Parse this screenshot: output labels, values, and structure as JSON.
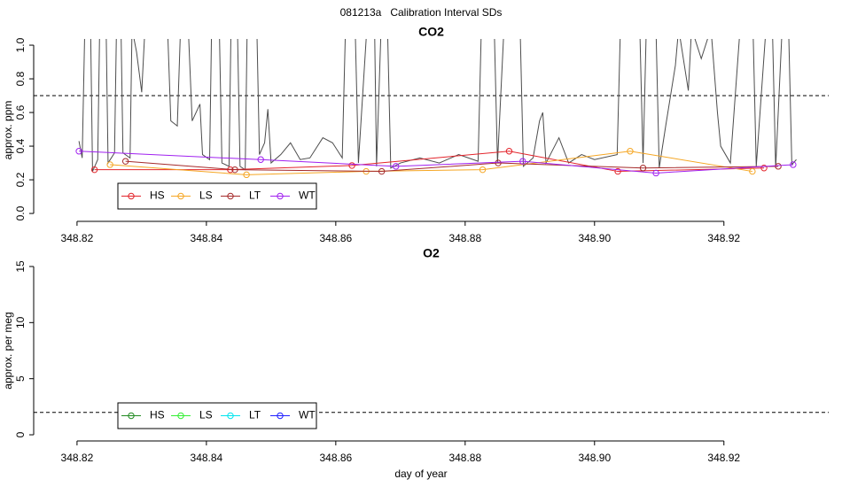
{
  "title": "081213a   Calibration Interval SDs",
  "xlabel": "day of year",
  "chart_data": [
    {
      "type": "line",
      "title": "CO2",
      "ylabel": "approx. ppm",
      "xlim": [
        348.8133,
        348.9362
      ],
      "ylim": [
        -0.047,
        1.037
      ],
      "xticks": [
        348.82,
        348.84,
        348.86,
        348.88,
        {
          "value": 348.9,
          "label": "348.90"
        },
        348.92
      ],
      "yticks": [
        {
          "value": 0,
          "label": "0.0"
        },
        0.2,
        0.4,
        0.6,
        0.8,
        {
          "value": 1,
          "label": "1.0"
        }
      ],
      "hline": 0.7,
      "legend": "bottom-left",
      "trace": {
        "color": "#4d4d4d",
        "x": [
          348.8203,
          348.8208,
          348.8212,
          348.8221,
          348.8224,
          348.8232,
          348.8235,
          348.8245,
          348.8248,
          348.8258,
          348.8261,
          348.8268,
          348.8271,
          348.8282,
          348.8285,
          348.8292,
          348.83,
          348.8305,
          348.834,
          348.8345,
          348.8355,
          348.836,
          348.8372,
          348.8378,
          348.839,
          348.8394,
          348.8405,
          348.8408,
          348.842,
          348.8424,
          348.8435,
          348.8438,
          348.8448,
          348.8452,
          348.846,
          348.8463,
          348.8478,
          348.8482,
          348.849,
          348.8495,
          348.85,
          348.8515,
          348.853,
          348.8545,
          348.856,
          348.858,
          348.8595,
          348.861,
          348.8615,
          348.863,
          348.8635,
          348.8648,
          348.866,
          348.8663,
          348.867,
          348.868,
          348.8685,
          348.87,
          348.873,
          348.876,
          348.879,
          348.882,
          348.8825,
          348.8845,
          348.885,
          348.886,
          348.8885,
          348.889,
          348.8905,
          348.8915,
          348.892,
          348.8925,
          348.8945,
          348.896,
          348.898,
          348.9,
          348.9035,
          348.904,
          348.907,
          348.9075,
          348.908,
          348.9095,
          348.91,
          348.911,
          348.9125,
          348.913,
          348.9145,
          348.915,
          348.9165,
          348.918,
          348.919,
          348.9195,
          348.921,
          348.9225,
          348.9245,
          348.925,
          348.9265,
          348.9275,
          348.928,
          348.929,
          348.93,
          348.9305,
          348.9312
        ],
        "values": [
          0.43,
          0.33,
          1.1,
          1.1,
          0.25,
          0.32,
          1.1,
          1.1,
          0.3,
          0.36,
          1.1,
          1.1,
          0.36,
          0.33,
          1.1,
          0.96,
          0.72,
          1.1,
          1.1,
          0.55,
          0.52,
          1.1,
          1.1,
          0.55,
          0.65,
          0.35,
          0.32,
          1.1,
          1.1,
          0.3,
          0.28,
          1.1,
          1.1,
          0.28,
          0.26,
          1.1,
          1.1,
          0.35,
          0.42,
          0.62,
          0.3,
          0.35,
          0.42,
          0.32,
          0.33,
          0.45,
          0.42,
          0.33,
          1.1,
          1.1,
          0.3,
          1.1,
          1.1,
          0.28,
          1.1,
          1.1,
          0.27,
          0.3,
          0.33,
          0.3,
          0.35,
          0.31,
          1.1,
          1.1,
          0.3,
          1.1,
          1.1,
          0.28,
          0.33,
          0.55,
          0.6,
          0.3,
          0.45,
          0.3,
          0.35,
          0.32,
          0.35,
          1.1,
          1.1,
          0.3,
          1.1,
          1.1,
          0.27,
          0.52,
          0.88,
          1.1,
          0.73,
          1.1,
          0.92,
          1.1,
          0.6,
          0.4,
          0.3,
          1.1,
          1.1,
          0.28,
          1.1,
          1.1,
          0.27,
          1.1,
          1.1,
          0.29,
          0.32
        ]
      },
      "series": [
        {
          "name": "HS",
          "color": "#e3242b",
          "x": [
            348.8227,
            348.8437,
            348.8625,
            348.8868,
            348.9036,
            348.9262
          ],
          "values": [
            0.26,
            0.26,
            0.285,
            0.37,
            0.25,
            0.27
          ]
        },
        {
          "name": "LS",
          "color": "#f5a623",
          "x": [
            348.8251,
            348.8462,
            348.8647,
            348.8827,
            348.9055,
            348.9244
          ],
          "values": [
            0.29,
            0.23,
            0.25,
            0.26,
            0.37,
            0.25
          ]
        },
        {
          "name": "LT",
          "color": "#a52a2a",
          "x": [
            348.8275,
            348.8444,
            348.8671,
            348.8851,
            348.9075,
            348.9284
          ],
          "values": [
            0.31,
            0.26,
            0.25,
            0.3,
            0.27,
            0.28
          ]
        },
        {
          "name": "WT",
          "color": "#a020f0",
          "x": [
            348.8203,
            348.8484,
            348.8693,
            348.8889,
            348.9095,
            348.9307
          ],
          "values": [
            0.37,
            0.32,
            0.28,
            0.31,
            0.24,
            0.29
          ]
        }
      ]
    },
    {
      "type": "line",
      "title": "O2",
      "ylabel": "approx. per meg",
      "xlim": [
        348.8133,
        348.9362
      ],
      "ylim": [
        -0.55,
        15.55
      ],
      "xticks": [
        348.82,
        348.84,
        348.86,
        348.88,
        {
          "value": 348.9,
          "label": "348.90"
        },
        348.92
      ],
      "yticks": [
        0,
        5,
        10,
        15
      ],
      "hline": 2,
      "legend": "bottom-left",
      "series": [
        {
          "name": "HS",
          "color": "#228b22",
          "x": [],
          "values": []
        },
        {
          "name": "LS",
          "color": "#33ee33",
          "x": [],
          "values": []
        },
        {
          "name": "LT",
          "color": "#00e5ee",
          "x": [],
          "values": []
        },
        {
          "name": "WT",
          "color": "#1f1fff",
          "x": [],
          "values": []
        }
      ]
    }
  ]
}
